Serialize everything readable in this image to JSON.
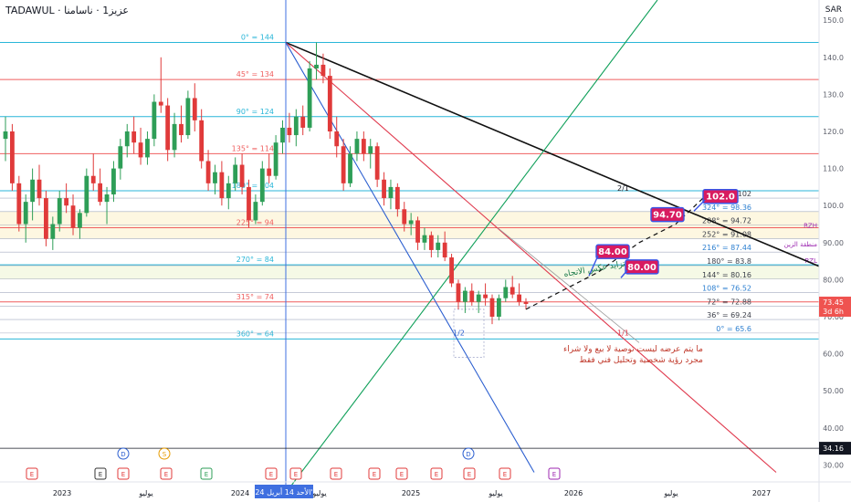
{
  "header": {
    "symbol": "TADAWUL",
    "name": "عزيز1 · ناسامنا",
    "currency": "SAR"
  },
  "colors": {
    "up": "#2e9e57",
    "down": "#e03a3a",
    "fan_black": "#111111",
    "fan_red": "#e03a4e",
    "fan_blue": "#2c5fd0",
    "fan_green": "#10a05a",
    "cyan_level": "#29b6d8",
    "red_level": "#ef5f5f",
    "badge_bg": "#d81b60",
    "badge_border": "#3a55e6",
    "last_price_bg": "#ef5350",
    "axis_text": "#5d606b"
  },
  "chart_data": {
    "type": "candlestick",
    "y_axis": {
      "ticks": [
        "150.0",
        "140.0",
        "130.0",
        "120.0",
        "110.0",
        "100.0",
        "90.00",
        "80.00",
        "70.00",
        "60.00",
        "50.00",
        "40.00",
        "30.00"
      ],
      "range": [
        30,
        153
      ]
    },
    "x_axis": {
      "ticks": [
        "2023",
        "يوليو",
        "2024",
        "يوليو",
        "2025",
        "يوليو",
        "2026",
        "يوليو",
        "2027"
      ],
      "highlight_label": "الأحد 14 أبريل 24'"
    },
    "last_price": {
      "value": "73.45",
      "countdown": "3d 6h"
    },
    "crosshair_price": "34.16",
    "angle_levels": [
      {
        "label": "0° = 144",
        "value": 144,
        "color": "cyan"
      },
      {
        "label": "45° = 134",
        "value": 134,
        "color": "red"
      },
      {
        "label": "90° = 124",
        "value": 124,
        "color": "cyan"
      },
      {
        "label": "135° = 114",
        "value": 114,
        "color": "red"
      },
      {
        "label": "180° = 104",
        "value": 104,
        "color": "cyan"
      },
      {
        "label": "225° = 94",
        "value": 94,
        "color": "red"
      },
      {
        "label": "270° = 84",
        "value": 84,
        "color": "cyan"
      },
      {
        "label": "315° = 74",
        "value": 74,
        "color": "red"
      },
      {
        "label": "360° = 64",
        "value": 64,
        "color": "cyan"
      }
    ],
    "square_levels": [
      {
        "label": "360° = 102",
        "value": 102
      },
      {
        "label": "324° = 98.36",
        "value": 98.36
      },
      {
        "label": "288° = 94.72",
        "value": 94.72
      },
      {
        "label": "252° = 91.08",
        "value": 91.08
      },
      {
        "label": "216° = 87.44",
        "value": 87.44
      },
      {
        "label": "180° = 83.8",
        "value": 83.8
      },
      {
        "label": "144° = 80.16",
        "value": 80.16
      },
      {
        "label": "108° = 76.52",
        "value": 76.52
      },
      {
        "label": "72° = 72.88",
        "value": 72.88
      },
      {
        "label": "36° = 69.24",
        "value": 69.24
      },
      {
        "label": "0° = 65.6",
        "value": 65.6
      }
    ],
    "zone_labels": {
      "rzh": "RZH",
      "rzl": "RZL",
      "zone": "منطقة الزين"
    },
    "fan_labels": {
      "two_one": "2/1",
      "one_one": "1/1",
      "one_two": "1/2"
    },
    "targets": [
      "102.0",
      "94.70",
      "84.00",
      "80.00"
    ],
    "trend_label": "تزايد عكس الاتجاه",
    "disclaimer": [
      "ما يتم عرضه ليست توصية لا بيع ولا شراء",
      "مجرد رؤية شخصية وتحليل فني فقط"
    ],
    "series": [
      {
        "name": "candles",
        "values": [
          {
            "o": 118,
            "h": 124,
            "l": 112,
            "c": 120
          },
          {
            "o": 120,
            "h": 122,
            "l": 104,
            "c": 106
          },
          {
            "o": 106,
            "h": 108,
            "l": 93,
            "c": 95
          },
          {
            "o": 95,
            "h": 103,
            "l": 90,
            "c": 101
          },
          {
            "o": 101,
            "h": 110,
            "l": 96,
            "c": 107
          },
          {
            "o": 107,
            "h": 111,
            "l": 100,
            "c": 102
          },
          {
            "o": 102,
            "h": 104,
            "l": 89,
            "c": 91
          },
          {
            "o": 91,
            "h": 97,
            "l": 88,
            "c": 95
          },
          {
            "o": 95,
            "h": 104,
            "l": 93,
            "c": 102
          },
          {
            "o": 102,
            "h": 106,
            "l": 98,
            "c": 100
          },
          {
            "o": 100,
            "h": 103,
            "l": 92,
            "c": 94
          },
          {
            "o": 94,
            "h": 99,
            "l": 91,
            "c": 98
          },
          {
            "o": 98,
            "h": 110,
            "l": 97,
            "c": 108
          },
          {
            "o": 108,
            "h": 114,
            "l": 104,
            "c": 106
          },
          {
            "o": 106,
            "h": 110,
            "l": 100,
            "c": 101
          },
          {
            "o": 101,
            "h": 105,
            "l": 95,
            "c": 103
          },
          {
            "o": 103,
            "h": 112,
            "l": 101,
            "c": 110
          },
          {
            "o": 110,
            "h": 118,
            "l": 107,
            "c": 116
          },
          {
            "o": 116,
            "h": 122,
            "l": 113,
            "c": 120
          },
          {
            "o": 120,
            "h": 124,
            "l": 114,
            "c": 117
          },
          {
            "o": 117,
            "h": 121,
            "l": 111,
            "c": 113
          },
          {
            "o": 113,
            "h": 120,
            "l": 111,
            "c": 118
          },
          {
            "o": 118,
            "h": 130,
            "l": 116,
            "c": 128
          },
          {
            "o": 128,
            "h": 140,
            "l": 125,
            "c": 127
          },
          {
            "o": 127,
            "h": 129,
            "l": 112,
            "c": 115
          },
          {
            "o": 115,
            "h": 125,
            "l": 113,
            "c": 122
          },
          {
            "o": 122,
            "h": 127,
            "l": 117,
            "c": 119
          },
          {
            "o": 119,
            "h": 131,
            "l": 118,
            "c": 129
          },
          {
            "o": 129,
            "h": 133,
            "l": 120,
            "c": 123
          },
          {
            "o": 123,
            "h": 126,
            "l": 110,
            "c": 112
          },
          {
            "o": 112,
            "h": 115,
            "l": 104,
            "c": 106
          },
          {
            "o": 106,
            "h": 111,
            "l": 103,
            "c": 109
          },
          {
            "o": 109,
            "h": 112,
            "l": 100,
            "c": 102
          },
          {
            "o": 102,
            "h": 108,
            "l": 99,
            "c": 106
          },
          {
            "o": 106,
            "h": 113,
            "l": 104,
            "c": 111
          },
          {
            "o": 111,
            "h": 114,
            "l": 103,
            "c": 105
          },
          {
            "o": 105,
            "h": 107,
            "l": 94,
            "c": 96
          },
          {
            "o": 96,
            "h": 103,
            "l": 95,
            "c": 101
          },
          {
            "o": 101,
            "h": 112,
            "l": 100,
            "c": 110
          },
          {
            "o": 110,
            "h": 114,
            "l": 106,
            "c": 108
          },
          {
            "o": 108,
            "h": 119,
            "l": 107,
            "c": 117
          },
          {
            "o": 117,
            "h": 123,
            "l": 114,
            "c": 121
          },
          {
            "o": 121,
            "h": 125,
            "l": 117,
            "c": 119
          },
          {
            "o": 119,
            "h": 126,
            "l": 116,
            "c": 124
          },
          {
            "o": 124,
            "h": 127,
            "l": 119,
            "c": 121
          },
          {
            "o": 121,
            "h": 139,
            "l": 120,
            "c": 137
          },
          {
            "o": 137,
            "h": 144,
            "l": 134,
            "c": 138
          },
          {
            "o": 138,
            "h": 141,
            "l": 133,
            "c": 135
          },
          {
            "o": 135,
            "h": 137,
            "l": 118,
            "c": 120
          },
          {
            "o": 120,
            "h": 124,
            "l": 113,
            "c": 116
          },
          {
            "o": 116,
            "h": 118,
            "l": 104,
            "c": 106
          },
          {
            "o": 106,
            "h": 116,
            "l": 105,
            "c": 114
          },
          {
            "o": 114,
            "h": 120,
            "l": 112,
            "c": 118
          },
          {
            "o": 118,
            "h": 120,
            "l": 112,
            "c": 114
          },
          {
            "o": 114,
            "h": 118,
            "l": 110,
            "c": 116
          },
          {
            "o": 116,
            "h": 117,
            "l": 105,
            "c": 107
          },
          {
            "o": 107,
            "h": 109,
            "l": 100,
            "c": 102
          },
          {
            "o": 102,
            "h": 107,
            "l": 99,
            "c": 105
          },
          {
            "o": 105,
            "h": 106,
            "l": 97,
            "c": 99
          },
          {
            "o": 99,
            "h": 101,
            "l": 93,
            "c": 95
          },
          {
            "o": 95,
            "h": 98,
            "l": 92,
            "c": 96
          },
          {
            "o": 96,
            "h": 97,
            "l": 88,
            "c": 90
          },
          {
            "o": 90,
            "h": 94,
            "l": 88,
            "c": 92
          },
          {
            "o": 92,
            "h": 93,
            "l": 86,
            "c": 88
          },
          {
            "o": 88,
            "h": 92,
            "l": 86,
            "c": 90
          },
          {
            "o": 90,
            "h": 93,
            "l": 85,
            "c": 86
          },
          {
            "o": 86,
            "h": 87,
            "l": 78,
            "c": 79
          },
          {
            "o": 79,
            "h": 80,
            "l": 72,
            "c": 74
          },
          {
            "o": 74,
            "h": 78,
            "l": 71,
            "c": 77
          },
          {
            "o": 77,
            "h": 79,
            "l": 73,
            "c": 74
          },
          {
            "o": 74,
            "h": 77,
            "l": 71,
            "c": 76
          },
          {
            "o": 76,
            "h": 79,
            "l": 73,
            "c": 75
          },
          {
            "o": 75,
            "h": 76,
            "l": 68,
            "c": 70
          },
          {
            "o": 70,
            "h": 76,
            "l": 69,
            "c": 75
          },
          {
            "o": 75,
            "h": 80,
            "l": 74,
            "c": 78
          },
          {
            "o": 78,
            "h": 81,
            "l": 75,
            "c": 76
          },
          {
            "o": 76,
            "h": 79,
            "l": 73,
            "c": 74
          },
          {
            "o": 74,
            "h": 75,
            "l": 72,
            "c": 73.45
          }
        ]
      }
    ]
  }
}
